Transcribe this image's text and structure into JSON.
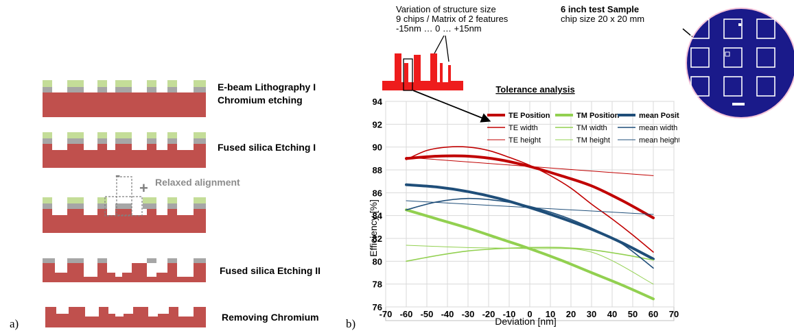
{
  "panel_a": {
    "letter": "a)",
    "steps": [
      {
        "label_lines": [
          "E-beam Lithography I",
          "Chromium etching"
        ]
      },
      {
        "label_lines": [
          "Fused silica Etching I"
        ]
      },
      {
        "label_lines": []
      },
      {
        "label_lines": [
          "Fused silica Etching II"
        ]
      },
      {
        "label_lines": [
          "Removing Chromium"
        ]
      }
    ],
    "alignment_label": "Relaxed alignment",
    "minus_sign": "-",
    "plus_sign": "+",
    "colors": {
      "substrate": "#c0504d",
      "chromium": "#a6a6a6",
      "resist": "#c4dd98"
    }
  },
  "panel_b": {
    "letter": "b)",
    "variation_text": [
      "Variation of structure size",
      "9 chips / Matrix of 2 features",
      "-15nm … 0 … +15nm"
    ],
    "sample_title": "6 inch test Sample",
    "sample_subtitle": "chip size 20 x 20 mm",
    "chart_title": "Tolerance analysis"
  },
  "chart_data": {
    "type": "line",
    "title": "Tolerance analysis",
    "xlabel": "Deviation [nm]",
    "ylabel": "Efficiency [%]",
    "xlim": [
      -70,
      70
    ],
    "ylim": [
      76,
      94
    ],
    "xticks": [
      -70,
      -60,
      -50,
      -40,
      -30,
      -20,
      -10,
      0,
      10,
      20,
      30,
      40,
      50,
      60,
      70
    ],
    "yticks": [
      76,
      78,
      80,
      82,
      84,
      86,
      88,
      90,
      92,
      94
    ],
    "grid": true,
    "legend": "top-right",
    "series": [
      {
        "name": "TE Position",
        "color": "#c00000",
        "width": 4.0,
        "x": [
          -60,
          -45,
          -30,
          -15,
          0,
          15,
          30,
          45,
          60
        ],
        "y": [
          89.0,
          89.2,
          89.2,
          88.9,
          88.3,
          87.5,
          86.6,
          85.3,
          83.8
        ]
      },
      {
        "name": "TM Position",
        "color": "#92d050",
        "width": 4.0,
        "x": [
          -60,
          -45,
          -30,
          -15,
          0,
          15,
          30,
          45,
          60
        ],
        "y": [
          84.5,
          83.7,
          82.9,
          82.0,
          81.1,
          80.1,
          79.0,
          77.9,
          76.7
        ]
      },
      {
        "name": "mean Position",
        "color": "#1f4e79",
        "width": 4.0,
        "x": [
          -60,
          -45,
          -30,
          -15,
          0,
          15,
          30,
          45,
          60
        ],
        "y": [
          86.7,
          86.5,
          86.1,
          85.5,
          84.7,
          83.8,
          82.8,
          81.6,
          80.2
        ]
      },
      {
        "name": "TE width",
        "color": "#c00000",
        "width": 1.6,
        "x": [
          -60,
          -50,
          -40,
          -30,
          -20,
          -10,
          0,
          10,
          20,
          30,
          40,
          50,
          60
        ],
        "y": [
          88.9,
          89.7,
          90.0,
          90.0,
          89.7,
          89.1,
          88.4,
          87.5,
          86.4,
          85.0,
          83.7,
          82.3,
          80.8
        ]
      },
      {
        "name": "TM width",
        "color": "#92d050",
        "width": 1.6,
        "x": [
          -60,
          -45,
          -30,
          -15,
          0,
          15,
          30,
          45,
          60
        ],
        "y": [
          80.0,
          80.5,
          80.9,
          81.1,
          81.2,
          81.2,
          81.0,
          80.6,
          80.1
        ]
      },
      {
        "name": "mean width",
        "color": "#1f4e79",
        "width": 1.6,
        "x": [
          -60,
          -45,
          -30,
          -15,
          0,
          15,
          30,
          45,
          60
        ],
        "y": [
          84.5,
          85.2,
          85.5,
          85.3,
          84.8,
          84.0,
          82.9,
          81.5,
          79.4
        ]
      },
      {
        "name": "TE height",
        "color": "#c00000",
        "width": 1.0,
        "x": [
          -60,
          60
        ],
        "y": [
          89.1,
          87.5
        ]
      },
      {
        "name": "TM height",
        "color": "#92d050",
        "width": 1.0,
        "x": [
          -60,
          -30,
          0,
          30,
          60
        ],
        "y": [
          81.4,
          81.2,
          81.1,
          80.8,
          78.0
        ]
      },
      {
        "name": "mean height",
        "color": "#1f4e79",
        "width": 1.0,
        "x": [
          -60,
          60
        ],
        "y": [
          85.3,
          84.1
        ]
      }
    ]
  }
}
